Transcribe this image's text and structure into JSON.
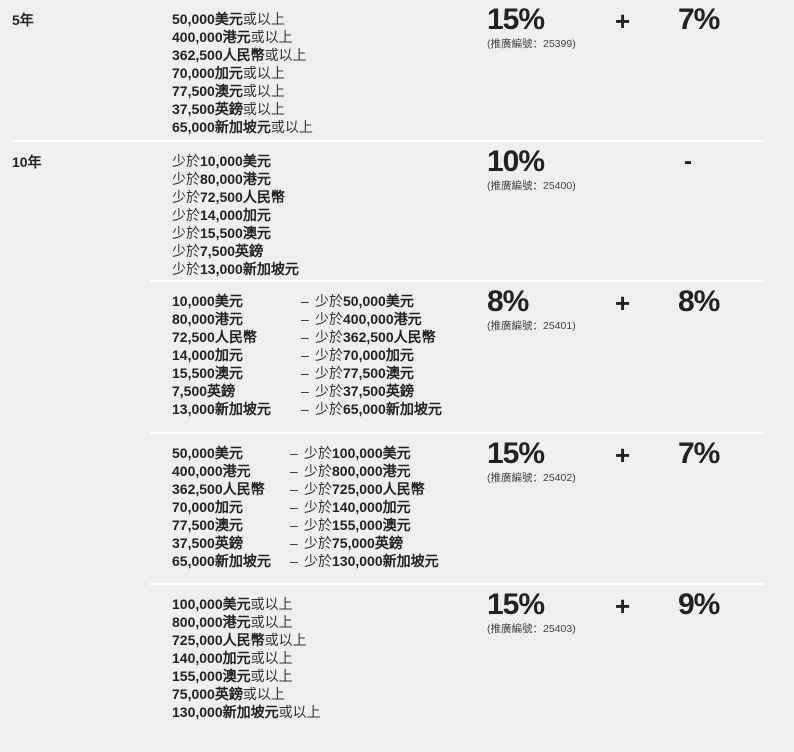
{
  "tiers": [
    {
      "year": "5年",
      "rows": [
        {
          "type": "single",
          "lines": [
            [
              {
                "t": "50,000美元",
                "b": true
              },
              {
                "t": "或以上",
                "b": false
              }
            ],
            [
              {
                "t": "400,000港元",
                "b": true
              },
              {
                "t": "或以上",
                "b": false
              }
            ],
            [
              {
                "t": "362,500人民幣",
                "b": true
              },
              {
                "t": "或以上",
                "b": false
              }
            ],
            [
              {
                "t": "70,000加元",
                "b": true
              },
              {
                "t": "或以上",
                "b": false
              }
            ],
            [
              {
                "t": "77,500澳元",
                "b": true
              },
              {
                "t": "或以上",
                "b": false
              }
            ],
            [
              {
                "t": "37,500英鎊",
                "b": true
              },
              {
                "t": "或以上",
                "b": false
              }
            ],
            [
              {
                "t": "65,000新加坡元",
                "b": true
              },
              {
                "t": "或以上",
                "b": false
              }
            ]
          ],
          "rate": "15%",
          "code": "(推廣編號：25399)",
          "plus": "+",
          "bonus": "7%"
        }
      ]
    },
    {
      "year": "10年",
      "rows": [
        {
          "type": "single",
          "lines": [
            [
              {
                "t": "少於",
                "b": false
              },
              {
                "t": "10,000美元",
                "b": true
              }
            ],
            [
              {
                "t": "少於",
                "b": false
              },
              {
                "t": "80,000港元",
                "b": true
              }
            ],
            [
              {
                "t": "少於",
                "b": false
              },
              {
                "t": "72,500人民幣",
                "b": true
              }
            ],
            [
              {
                "t": "少於",
                "b": false
              },
              {
                "t": "14,000加元",
                "b": true
              }
            ],
            [
              {
                "t": "少於",
                "b": false
              },
              {
                "t": "15,500澳元",
                "b": true
              }
            ],
            [
              {
                "t": "少於",
                "b": false
              },
              {
                "t": "7,500英鎊",
                "b": true
              }
            ],
            [
              {
                "t": "少於",
                "b": false
              },
              {
                "t": "13,000新加坡元",
                "b": true
              }
            ]
          ],
          "rate": "10%",
          "code": "(推廣編號：25400)",
          "plus": "",
          "bonus": "-"
        },
        {
          "type": "range",
          "dash": "–",
          "less": "少於",
          "lines": [
            {
              "from": "10,000美元",
              "to": "50,000美元"
            },
            {
              "from": "80,000港元",
              "to": "400,000港元"
            },
            {
              "from": "72,500人民幣",
              "to": "362,500人民幣"
            },
            {
              "from": "14,000加元",
              "to": "70,000加元"
            },
            {
              "from": "15,500澳元",
              "to": "77,500澳元"
            },
            {
              "from": "7,500英鎊",
              "to": "37,500英鎊"
            },
            {
              "from": "13,000新加坡元",
              "to": "65,000新加坡元"
            }
          ],
          "rate": "8%",
          "code": "(推廣編號：25401)",
          "plus": "+",
          "bonus": "8%"
        },
        {
          "type": "range",
          "dash": "–",
          "less": "少於",
          "lines": [
            {
              "from": "50,000美元",
              "to": "100,000美元"
            },
            {
              "from": "400,000港元",
              "to": "800,000港元"
            },
            {
              "from": "362,500人民幣",
              "to": "725,000人民幣"
            },
            {
              "from": "70,000加元",
              "to": "140,000加元"
            },
            {
              "from": "77,500澳元",
              "to": "155,000澳元"
            },
            {
              "from": "37,500英鎊",
              "to": "75,000英鎊"
            },
            {
              "from": "65,000新加坡元",
              "to": "130,000新加坡元"
            }
          ],
          "rate": "15%",
          "code": "(推廣編號：25402)",
          "plus": "+",
          "bonus": "7%"
        },
        {
          "type": "single",
          "lines": [
            [
              {
                "t": "100,000美元",
                "b": true
              },
              {
                "t": "或以上",
                "b": false
              }
            ],
            [
              {
                "t": "800,000港元",
                "b": true
              },
              {
                "t": "或以上",
                "b": false
              }
            ],
            [
              {
                "t": "725,000人民幣",
                "b": true
              },
              {
                "t": "或以上",
                "b": false
              }
            ],
            [
              {
                "t": "140,000加元",
                "b": true
              },
              {
                "t": "或以上",
                "b": false
              }
            ],
            [
              {
                "t": "155,000澳元",
                "b": true
              },
              {
                "t": "或以上",
                "b": false
              }
            ],
            [
              {
                "t": "75,000英鎊",
                "b": true
              },
              {
                "t": "或以上",
                "b": false
              }
            ],
            [
              {
                "t": "130,000新加坡元",
                "b": true
              },
              {
                "t": "或以上",
                "b": false
              }
            ]
          ],
          "rate": "15%",
          "code": "(推廣編號：25403)",
          "plus": "+",
          "bonus": "9%"
        }
      ]
    }
  ]
}
